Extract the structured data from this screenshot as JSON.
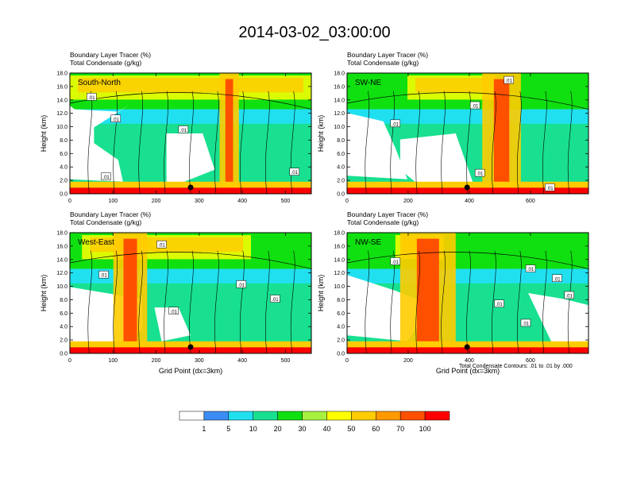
{
  "title": "2014-03-02_03:00:00",
  "footnote": "Total Condensate Contours: .01 to .01 by .000",
  "chart_data": [
    {
      "type": "heatmap",
      "panel": "South-North",
      "subtitle_lines": [
        "Boundary Layer Tracer   (%)",
        "Total Condensate   (g/kg)"
      ],
      "ylabel": "Height (km)",
      "xlabel": "",
      "xlim": [
        0,
        560
      ],
      "ylim": [
        0,
        18
      ],
      "xticks": [
        "0",
        "100",
        "200",
        "300",
        "400",
        "500"
      ],
      "xtick_values": [
        0,
        100,
        200,
        300,
        400,
        500
      ],
      "yticks": [
        "0.0",
        "2.0",
        "4.0",
        "6.0",
        "8.0",
        "10.0",
        "12.0",
        "14.0",
        "16.0",
        "18.0"
      ],
      "contour_labels": [
        ".01",
        ".01",
        ".01",
        ".01",
        ".01"
      ],
      "marker_x": 280
    },
    {
      "type": "heatmap",
      "panel": "SW-NE",
      "subtitle_lines": [
        "Boundary Layer Tracer   (%)",
        "Total Condensate   (g/kg)"
      ],
      "ylabel": "Height (km)",
      "xlabel": "",
      "xlim": [
        0,
        790
      ],
      "ylim": [
        0,
        18
      ],
      "xticks": [
        "0",
        "200",
        "400",
        "600"
      ],
      "xtick_values": [
        0,
        200,
        400,
        600
      ],
      "yticks": [
        "0.0",
        "2.0",
        "4.0",
        "6.0",
        "8.0",
        "10.0",
        "12.0",
        "14.0",
        "16.0",
        "18.0"
      ],
      "contour_labels": [
        ".01",
        ".01",
        ".01",
        ".01",
        ".01"
      ],
      "marker_x": 393
    },
    {
      "type": "heatmap",
      "panel": "West-East",
      "subtitle_lines": [
        "Boundary Layer Tracer   (%)",
        "Total Condensate   (g/kg)"
      ],
      "ylabel": "Height (km)",
      "xlabel": "Grid Point (dx=3km)",
      "xlim": [
        0,
        560
      ],
      "ylim": [
        0,
        18
      ],
      "xticks": [
        "0",
        "100",
        "200",
        "300",
        "400",
        "500"
      ],
      "xtick_values": [
        0,
        100,
        200,
        300,
        400,
        500
      ],
      "yticks": [
        "0.0",
        "2.0",
        "4.0",
        "6.0",
        "8.0",
        "10.0",
        "12.0",
        "14.0",
        "16.0",
        "18.0"
      ],
      "contour_labels": [
        ".01",
        ".01",
        ".01",
        ".01",
        ".01"
      ],
      "marker_x": 280
    },
    {
      "type": "heatmap",
      "panel": "NW-SE",
      "subtitle_lines": [
        "Boundary Layer Tracer   (%)",
        "Total Condensate   (g/kg)"
      ],
      "ylabel": "Height (km)",
      "xlabel": "Grid Point (dx=3km)",
      "xlim": [
        0,
        790
      ],
      "ylim": [
        0,
        18
      ],
      "xticks": [
        "0",
        "200",
        "400",
        "600"
      ],
      "xtick_values": [
        0,
        200,
        400,
        600
      ],
      "yticks": [
        "0.0",
        "2.0",
        "4.0",
        "6.0",
        "8.0",
        "10.0",
        "12.0",
        "14.0",
        "16.0",
        "18.0"
      ],
      "contour_labels": [
        ".01",
        ".01",
        ".01",
        ".01",
        ".01",
        ".01"
      ],
      "marker_x": 393
    }
  ],
  "colorbar": {
    "labels": [
      "1",
      "5",
      "10",
      "20",
      "30",
      "40",
      "50",
      "60",
      "70",
      "100"
    ],
    "colors": [
      "#ffffff",
      "#3b8df5",
      "#20e0f0",
      "#18e090",
      "#10e010",
      "#a8f040",
      "#ffff00",
      "#ffcc00",
      "#ff9900",
      "#ff5000",
      "#ff0000"
    ]
  }
}
